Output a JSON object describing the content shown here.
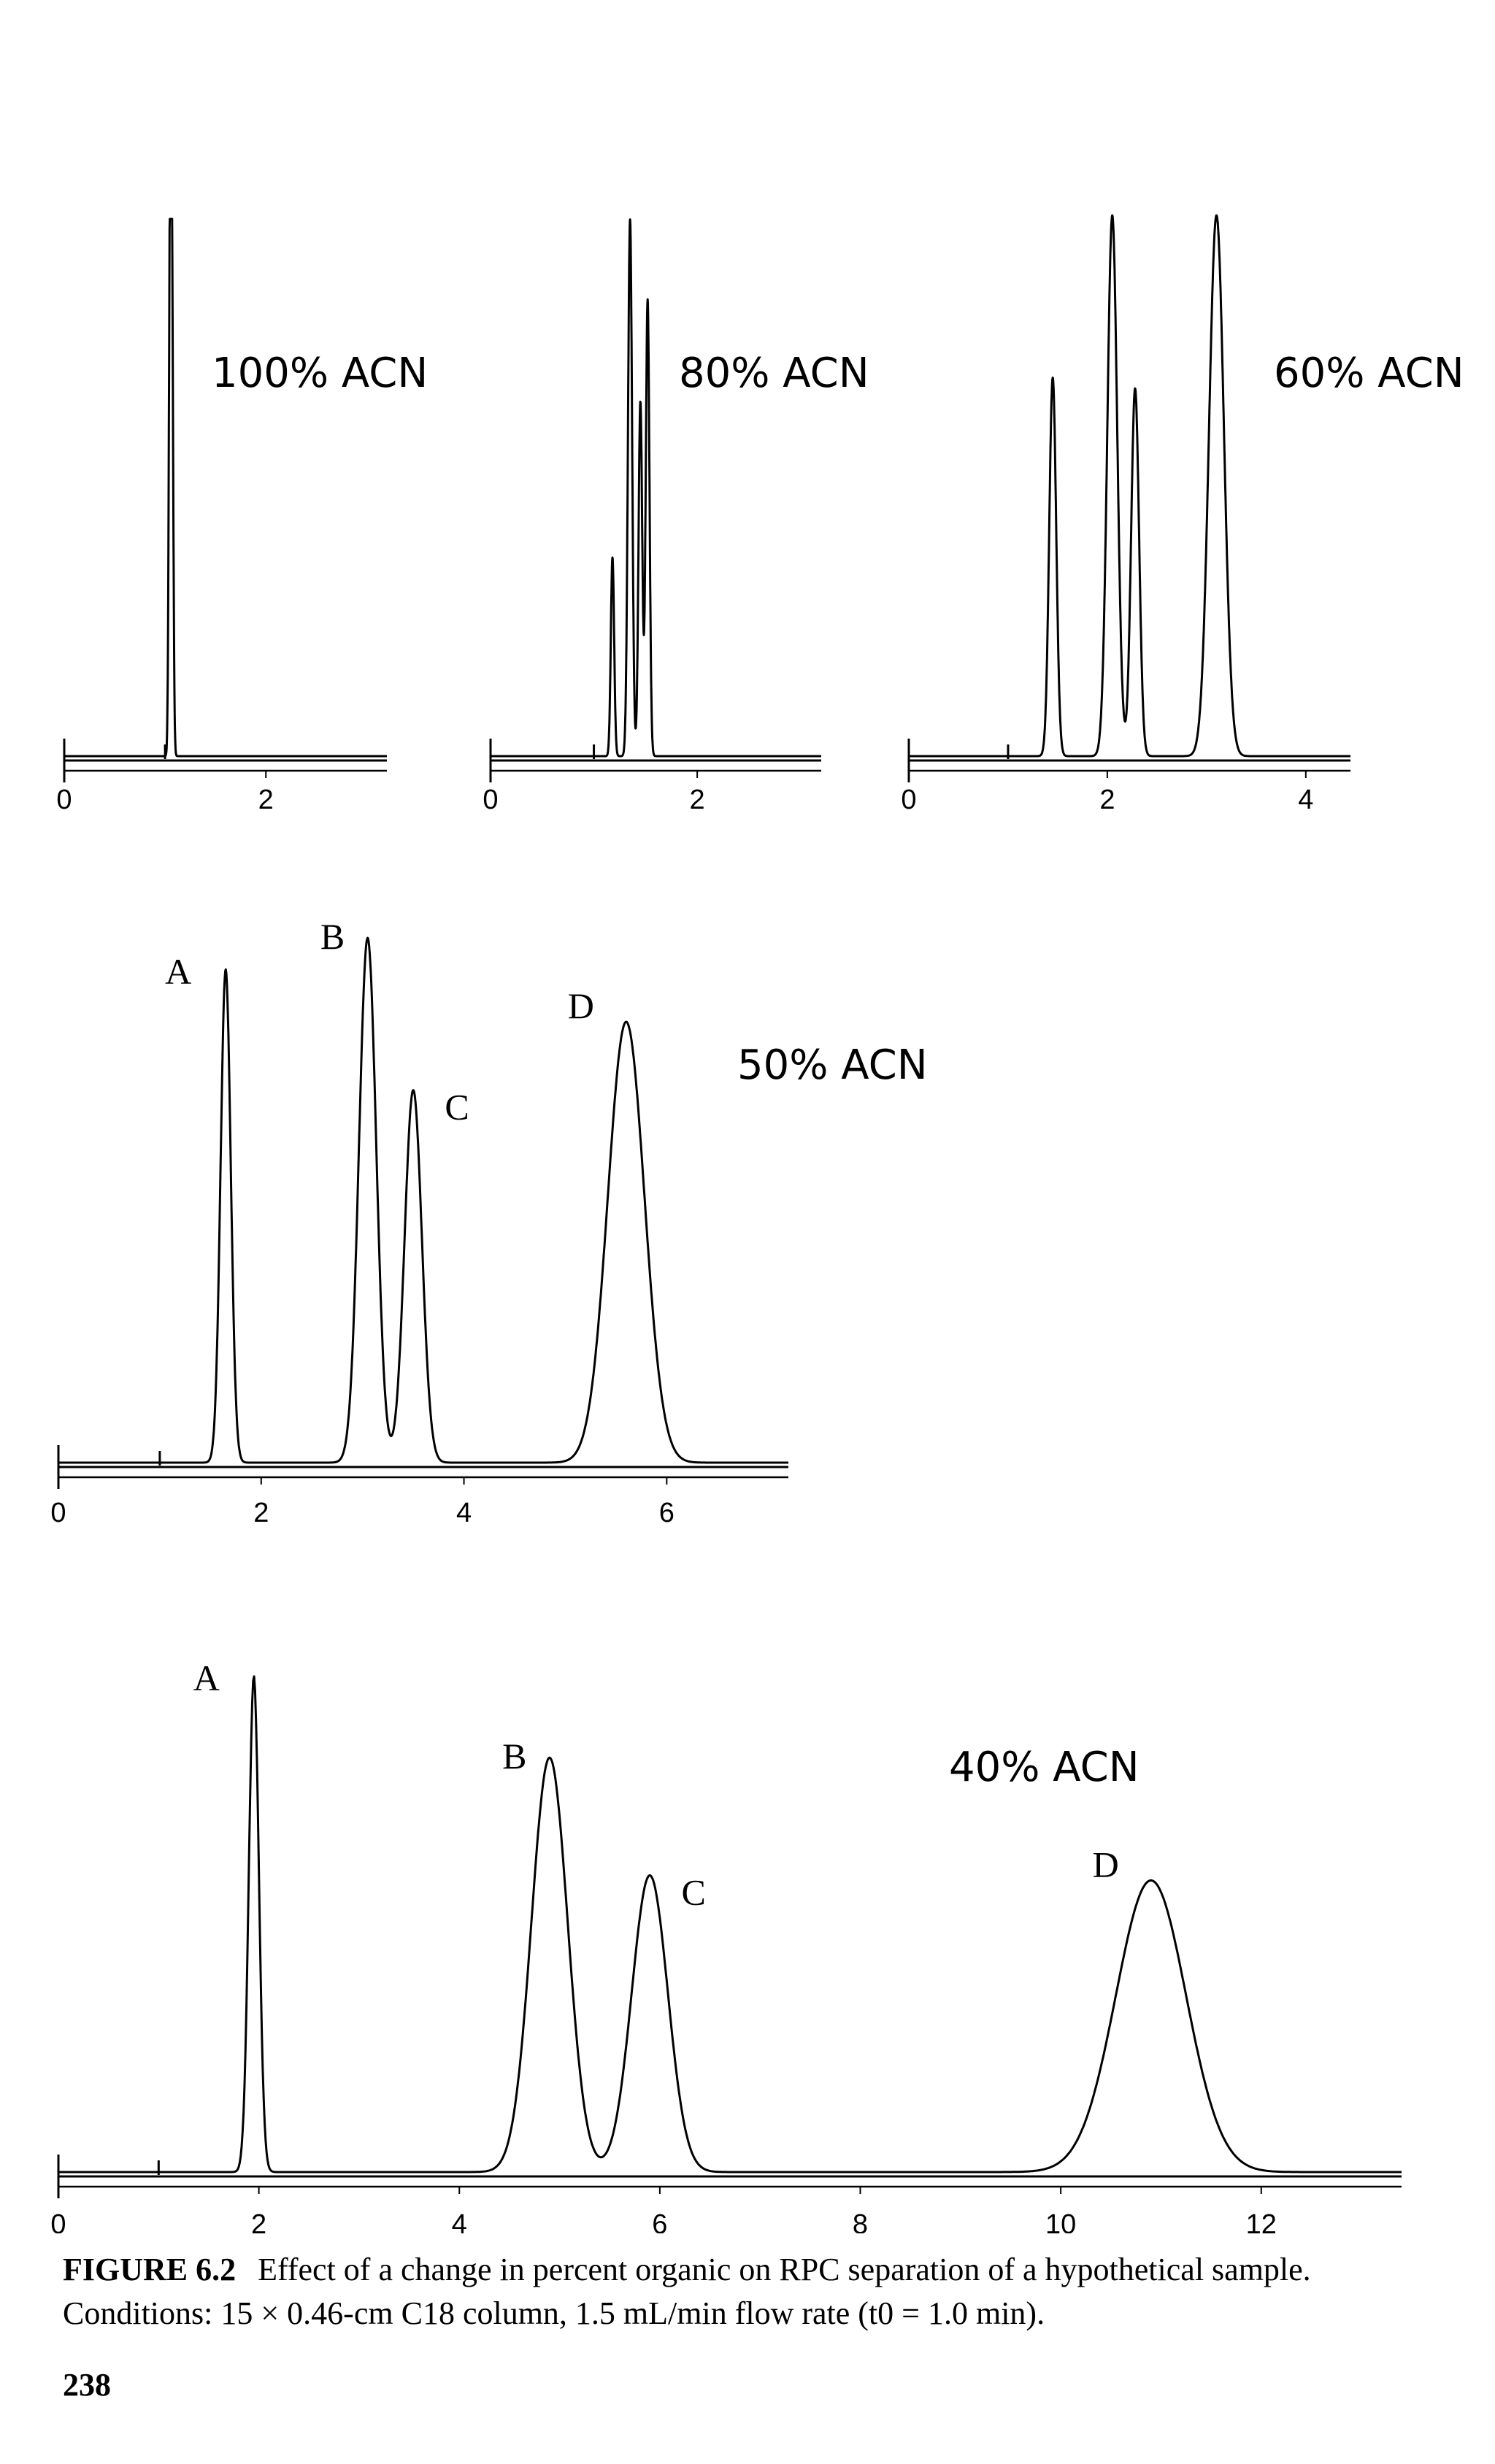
{
  "chart_data": [
    {
      "type": "line",
      "condition_label": "100% ACN",
      "x_tick_labels": [
        "0",
        "2"
      ],
      "xlim": [
        0,
        3.2
      ],
      "peaks": [
        {
          "label": "",
          "retention_min": 1.05,
          "height": 1.0,
          "width": 0.012
        },
        {
          "label": "",
          "retention_min": 1.07,
          "height": 0.75,
          "width": 0.012
        }
      ]
    },
    {
      "type": "line",
      "condition_label": "80% ACN",
      "x_tick_labels": [
        "0",
        "2"
      ],
      "xlim": [
        0,
        3.2
      ],
      "peaks": [
        {
          "label": "",
          "retention_min": 1.18,
          "height": 0.37,
          "width": 0.016
        },
        {
          "label": "",
          "retention_min": 1.35,
          "height": 1.0,
          "width": 0.02
        },
        {
          "label": "",
          "retention_min": 1.45,
          "height": 0.66,
          "width": 0.018
        },
        {
          "label": "",
          "retention_min": 1.52,
          "height": 0.85,
          "width": 0.018
        }
      ]
    },
    {
      "type": "line",
      "condition_label": "60% ACN",
      "x_tick_labels": [
        "0",
        "2",
        "4"
      ],
      "xlim": [
        0,
        4.45
      ],
      "peaks": [
        {
          "label": "",
          "retention_min": 1.45,
          "height": 0.7,
          "width": 0.035
        },
        {
          "label": "",
          "retention_min": 2.05,
          "height": 1.0,
          "width": 0.05
        },
        {
          "label": "",
          "retention_min": 2.28,
          "height": 0.68,
          "width": 0.04
        },
        {
          "label": "",
          "retention_min": 3.1,
          "height": 1.0,
          "width": 0.075
        }
      ]
    },
    {
      "type": "line",
      "condition_label": "50% ACN",
      "x_tick_labels": [
        "0",
        "2",
        "4",
        "6"
      ],
      "xlim": [
        0,
        7.2
      ],
      "peaks": [
        {
          "label": "A",
          "retention_min": 1.65,
          "height": 0.94,
          "width": 0.05
        },
        {
          "label": "B",
          "retention_min": 3.05,
          "height": 1.0,
          "width": 0.085
        },
        {
          "label": "C",
          "retention_min": 3.5,
          "height": 0.71,
          "width": 0.085
        },
        {
          "label": "D",
          "retention_min": 5.6,
          "height": 0.84,
          "width": 0.18
        }
      ]
    },
    {
      "type": "line",
      "condition_label": "40% ACN",
      "x_tick_labels": [
        "0",
        "2",
        "4",
        "6",
        "8",
        "10",
        "12"
      ],
      "xlim": [
        0,
        13.4
      ],
      "peaks": [
        {
          "label": "A",
          "retention_min": 1.95,
          "height": 0.97,
          "width": 0.05
        },
        {
          "label": "B",
          "retention_min": 4.9,
          "height": 0.81,
          "width": 0.18
        },
        {
          "label": "C",
          "retention_min": 5.9,
          "height": 0.58,
          "width": 0.18
        },
        {
          "label": "D",
          "retention_min": 10.9,
          "height": 0.57,
          "width": 0.35
        }
      ]
    }
  ],
  "caption": {
    "figure_number": "FIGURE 6.2",
    "text": "Effect of a change in percent organic on RPC separation of a hypothetical sample. Conditions: 15 × 0.46-cm C18 column, 1.5 mL/min flow rate (t0 = 1.0 min)."
  },
  "page_number": "238"
}
